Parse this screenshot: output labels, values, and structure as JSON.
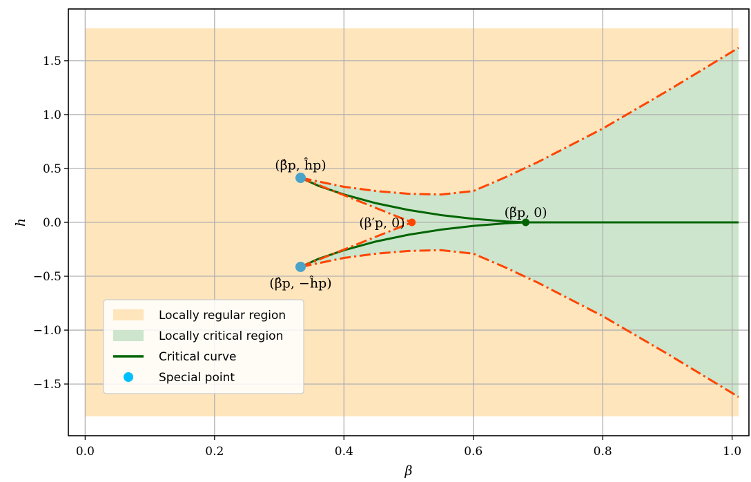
{
  "chart_data": {
    "type": "line",
    "title": "",
    "xlabel": "β",
    "ylabel": "h",
    "xlim": [
      -0.026,
      1.026
    ],
    "ylim": [
      -1.98,
      1.98
    ],
    "xticks": [
      0.0,
      0.2,
      0.4,
      0.6,
      0.8,
      1.0
    ],
    "xtick_labels": [
      "0.0",
      "0.2",
      "0.4",
      "0.6",
      "0.8",
      "1.0"
    ],
    "yticks": [
      -1.5,
      -1.0,
      -0.5,
      0.0,
      0.5,
      1.0,
      1.5
    ],
    "ytick_labels": [
      "−1.5",
      "−1.0",
      "−0.5",
      "0.0",
      "0.5",
      "1.0",
      "1.5"
    ],
    "grid": true,
    "legend_position": "lower-left",
    "colors": {
      "regular_fill": "#ffe5bc",
      "critical_fill": "#cde5cc",
      "critical_curve": "#006400",
      "boundary_line": "#ff4500",
      "special_point": "#00bfff",
      "special_point_outline": "#4aa3c8",
      "grid": "#b0b0b0"
    },
    "regions": {
      "regular": {
        "name": "Locally regular region",
        "x": [
          0.0,
          1.01
        ],
        "y": [
          -1.8,
          1.8
        ]
      },
      "critical": {
        "name": "Locally critical region",
        "upper": [
          [
            0.333,
            0.413
          ],
          [
            0.4,
            0.33
          ],
          [
            0.45,
            0.29
          ],
          [
            0.5,
            0.265
          ],
          [
            0.55,
            0.258
          ],
          [
            0.6,
            0.29
          ],
          [
            0.65,
            0.42
          ],
          [
            0.7,
            0.56
          ],
          [
            0.8,
            0.87
          ],
          [
            0.9,
            1.22
          ],
          [
            1.01,
            1.62
          ]
        ],
        "inner": [
          [
            0.333,
            0.413
          ],
          [
            0.505,
            0.0
          ],
          [
            0.333,
            -0.413
          ]
        ]
      }
    },
    "series": [
      {
        "name": "Critical curve",
        "style": "solid",
        "segments": [
          [
            [
              0.333,
              0.413
            ],
            [
              0.36,
              0.34
            ],
            [
              0.4,
              0.258
            ],
            [
              0.45,
              0.177
            ],
            [
              0.5,
              0.115
            ],
            [
              0.55,
              0.067
            ],
            [
              0.6,
              0.033
            ],
            [
              0.65,
              0.009
            ],
            [
              0.681,
              0.0
            ]
          ],
          [
            [
              0.333,
              -0.413
            ],
            [
              0.36,
              -0.34
            ],
            [
              0.4,
              -0.258
            ],
            [
              0.45,
              -0.177
            ],
            [
              0.5,
              -0.115
            ],
            [
              0.55,
              -0.067
            ],
            [
              0.6,
              -0.033
            ],
            [
              0.65,
              -0.009
            ],
            [
              0.681,
              0.0
            ]
          ],
          [
            [
              0.681,
              0.0
            ],
            [
              1.01,
              0.0
            ]
          ]
        ]
      },
      {
        "style": "dashdot",
        "segments": [
          [
            [
              0.333,
              0.413
            ],
            [
              0.4,
              0.33
            ],
            [
              0.45,
              0.29
            ],
            [
              0.5,
              0.265
            ],
            [
              0.55,
              0.258
            ],
            [
              0.6,
              0.29
            ],
            [
              0.65,
              0.42
            ],
            [
              0.7,
              0.56
            ],
            [
              0.8,
              0.87
            ],
            [
              0.9,
              1.22
            ],
            [
              1.01,
              1.62
            ]
          ],
          [
            [
              0.333,
              -0.413
            ],
            [
              0.4,
              -0.33
            ],
            [
              0.45,
              -0.29
            ],
            [
              0.5,
              -0.265
            ],
            [
              0.55,
              -0.258
            ],
            [
              0.6,
              -0.29
            ],
            [
              0.65,
              -0.42
            ],
            [
              0.7,
              -0.56
            ],
            [
              0.8,
              -0.87
            ],
            [
              0.9,
              -1.22
            ],
            [
              1.01,
              -1.62
            ]
          ],
          [
            [
              0.333,
              0.413
            ],
            [
              0.505,
              0.0
            ]
          ],
          [
            [
              0.333,
              -0.413
            ],
            [
              0.505,
              0.0
            ]
          ]
        ]
      }
    ],
    "special_points": {
      "name": "Special point",
      "points": [
        [
          0.333,
          0.413
        ],
        [
          0.333,
          -0.413
        ]
      ]
    },
    "other_points": [
      {
        "x": 0.505,
        "y": 0.0,
        "color": "#ff4500"
      },
      {
        "x": 0.681,
        "y": 0.0,
        "color": "#006400"
      }
    ],
    "annotations": [
      {
        "label": "(β̂p, ĥp)",
        "x": 0.333,
        "y": 0.413,
        "anchor": "above"
      },
      {
        "label": "(β̂p, −ĥp)",
        "x": 0.333,
        "y": -0.413,
        "anchor": "below"
      },
      {
        "label": "(β′p, 0)",
        "x": 0.505,
        "y": 0.0,
        "anchor": "left"
      },
      {
        "label": "(β̃p, 0)",
        "x": 0.681,
        "y": 0.0,
        "anchor": "above"
      }
    ],
    "legend": [
      {
        "label": "Locally regular region",
        "kind": "patch",
        "color": "#ffe5bc"
      },
      {
        "label": "Locally critical region",
        "kind": "patch",
        "color": "#cde5cc"
      },
      {
        "label": "Critical curve",
        "kind": "line",
        "color": "#006400"
      },
      {
        "label": "Special point",
        "kind": "marker",
        "color": "#00bfff"
      }
    ]
  }
}
